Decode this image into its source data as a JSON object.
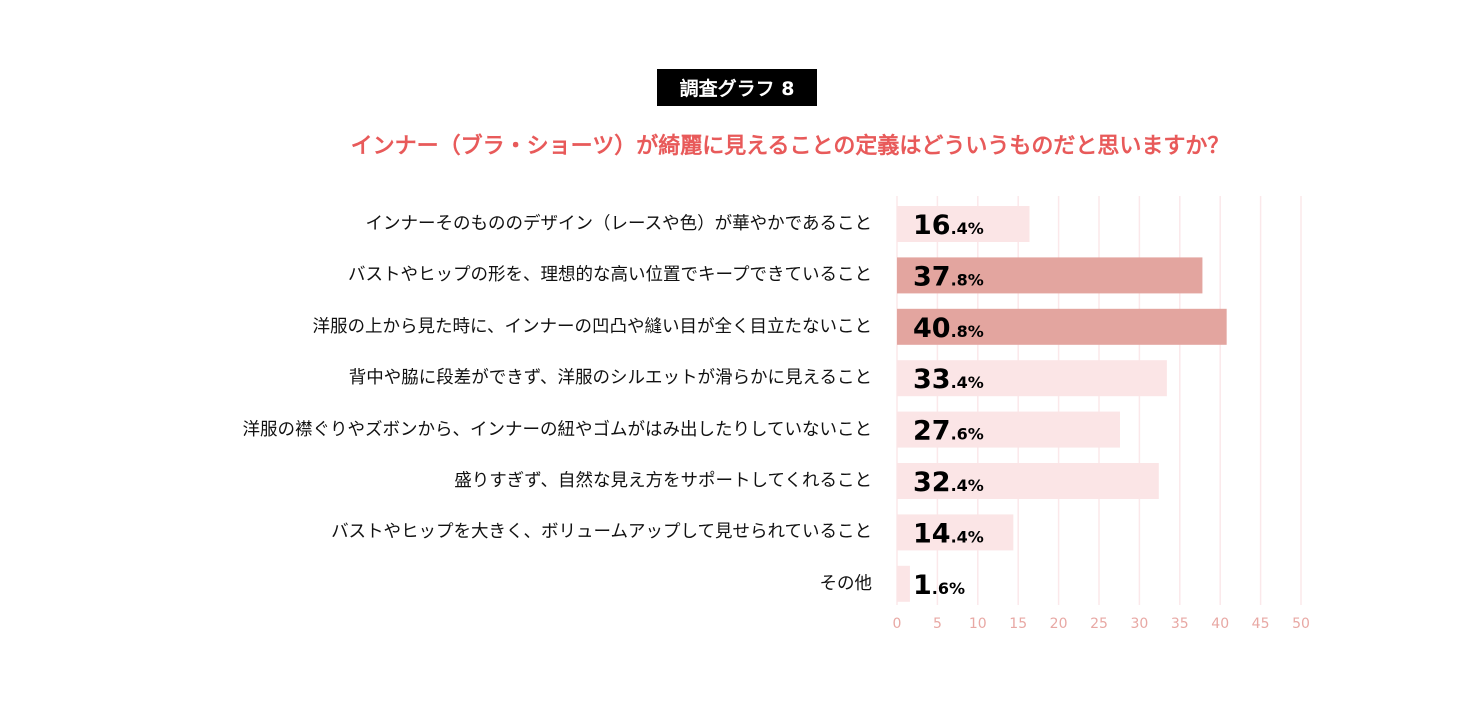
{
  "badge": "調査グラフ 8",
  "chart_data": {
    "type": "bar",
    "orientation": "horizontal",
    "title": "インナー（ブラ・ショーツ）が綺麗に見えることの定義はどういうものだと思いますか？",
    "categories": [
      "インナーそのもののデザイン（レースや色）が華やかであること",
      "バストやヒップの形を、理想的な高い位置でキープできていること",
      "洋服の上から見た時に、インナーの凹凸や縫い目が全く目立たないこと",
      "背中や脇に段差ができず、洋服のシルエットが滑らかに見えること",
      "洋服の襟ぐりやズボンから、インナーの紐やゴムがはみ出したりしていないこと",
      "盛りすぎず、自然な見え方をサポートしてくれること",
      "バストやヒップを大きく、ボリュームアップして見せられていること",
      "その他"
    ],
    "values": [
      16.4,
      37.8,
      40.8,
      33.4,
      27.6,
      32.4,
      14.4,
      1.6
    ],
    "highlighted": [
      false,
      true,
      true,
      false,
      false,
      false,
      false,
      false
    ],
    "xlim": [
      0,
      50
    ],
    "xticks": [
      0,
      5,
      10,
      15,
      20,
      25,
      30,
      35,
      40,
      45,
      50
    ],
    "unit": "%",
    "grid": true,
    "colors": {
      "bar": "#fbe5e6",
      "highlight": "#e3a59f",
      "grid": "#fbe8ea",
      "tick": "#e8a8a4",
      "title": "#e85a5a"
    }
  }
}
